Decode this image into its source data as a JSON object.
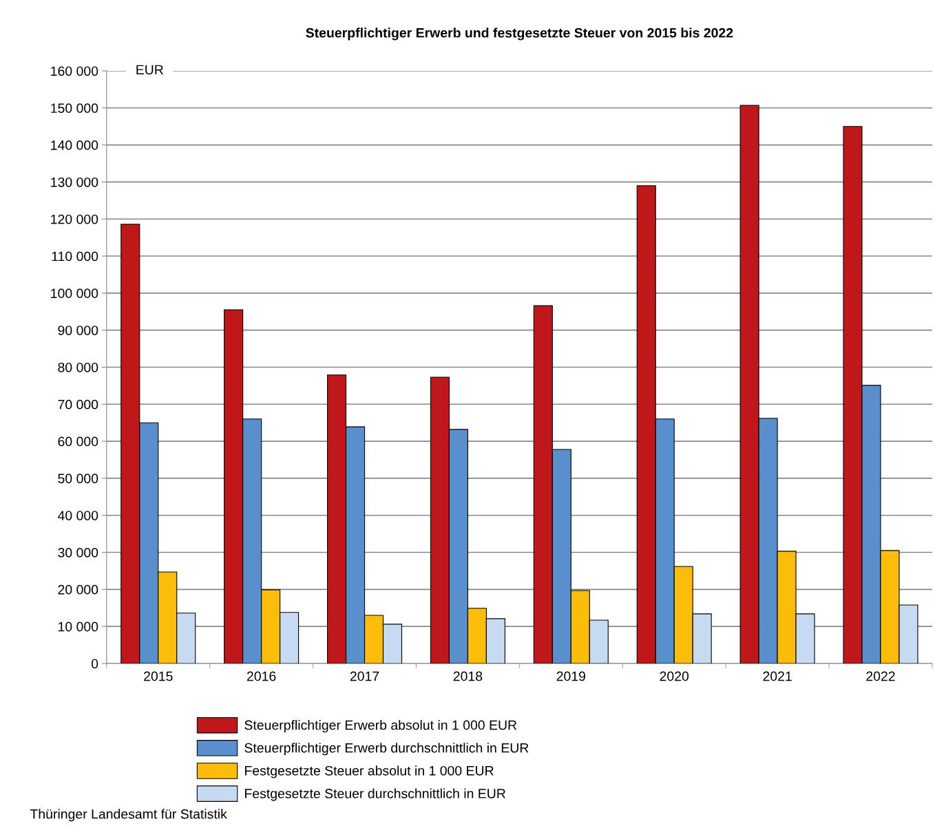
{
  "chart_data": {
    "type": "bar",
    "title": "Steuerpflichtiger Erwerb und festgesetzte Steuer von 2015 bis 2022",
    "categories": [
      "2015",
      "2016",
      "2017",
      "2018",
      "2019",
      "2020",
      "2021",
      "2022"
    ],
    "series": [
      {
        "name": "Steuerpflichtiger Erwerb absolut in 1 000 EUR",
        "color": "#c0181a",
        "values": [
          118600,
          95500,
          77900,
          77300,
          96600,
          129000,
          150700,
          145000
        ]
      },
      {
        "name": "Steuerpflichtiger Erwerb durchschnittlich in EUR",
        "color": "#5a8fce",
        "values": [
          65000,
          66000,
          63900,
          63200,
          57800,
          66000,
          66200,
          75100
        ]
      },
      {
        "name": "Festgesetzte Steuer absolut in 1 000 EUR",
        "color": "#fcbd0a",
        "values": [
          24700,
          19900,
          13000,
          14900,
          19700,
          26200,
          30300,
          30500
        ]
      },
      {
        "name": "Festgesetzte Steuer durchschnittlich in EUR",
        "color": "#c6daf1",
        "values": [
          13600,
          13800,
          10600,
          12100,
          11700,
          13400,
          13400,
          15800
        ]
      }
    ],
    "ylim": [
      0,
      160000
    ],
    "yticks": [
      {
        "value": 0,
        "label": "0"
      },
      {
        "value": 10000,
        "label": "10 000"
      },
      {
        "value": 20000,
        "label": "20 000"
      },
      {
        "value": 30000,
        "label": "30 000"
      },
      {
        "value": 40000,
        "label": "40 000"
      },
      {
        "value": 50000,
        "label": "50 000"
      },
      {
        "value": 60000,
        "label": "60 000"
      },
      {
        "value": 70000,
        "label": "70 000"
      },
      {
        "value": 80000,
        "label": "80 000"
      },
      {
        "value": 90000,
        "label": "90 000"
      },
      {
        "value": 100000,
        "label": "100 000"
      },
      {
        "value": 110000,
        "label": "110 000"
      },
      {
        "value": 120000,
        "label": "120 000"
      },
      {
        "value": 130000,
        "label": "130 000"
      },
      {
        "value": 140000,
        "label": "140 000"
      },
      {
        "value": 150000,
        "label": "150 000"
      },
      {
        "value": 160000,
        "label": "160 000"
      }
    ],
    "grid": "y",
    "legend": "bottom",
    "annotations": [
      "EUR",
      "Thüringer Landesamt für Statistik"
    ]
  }
}
